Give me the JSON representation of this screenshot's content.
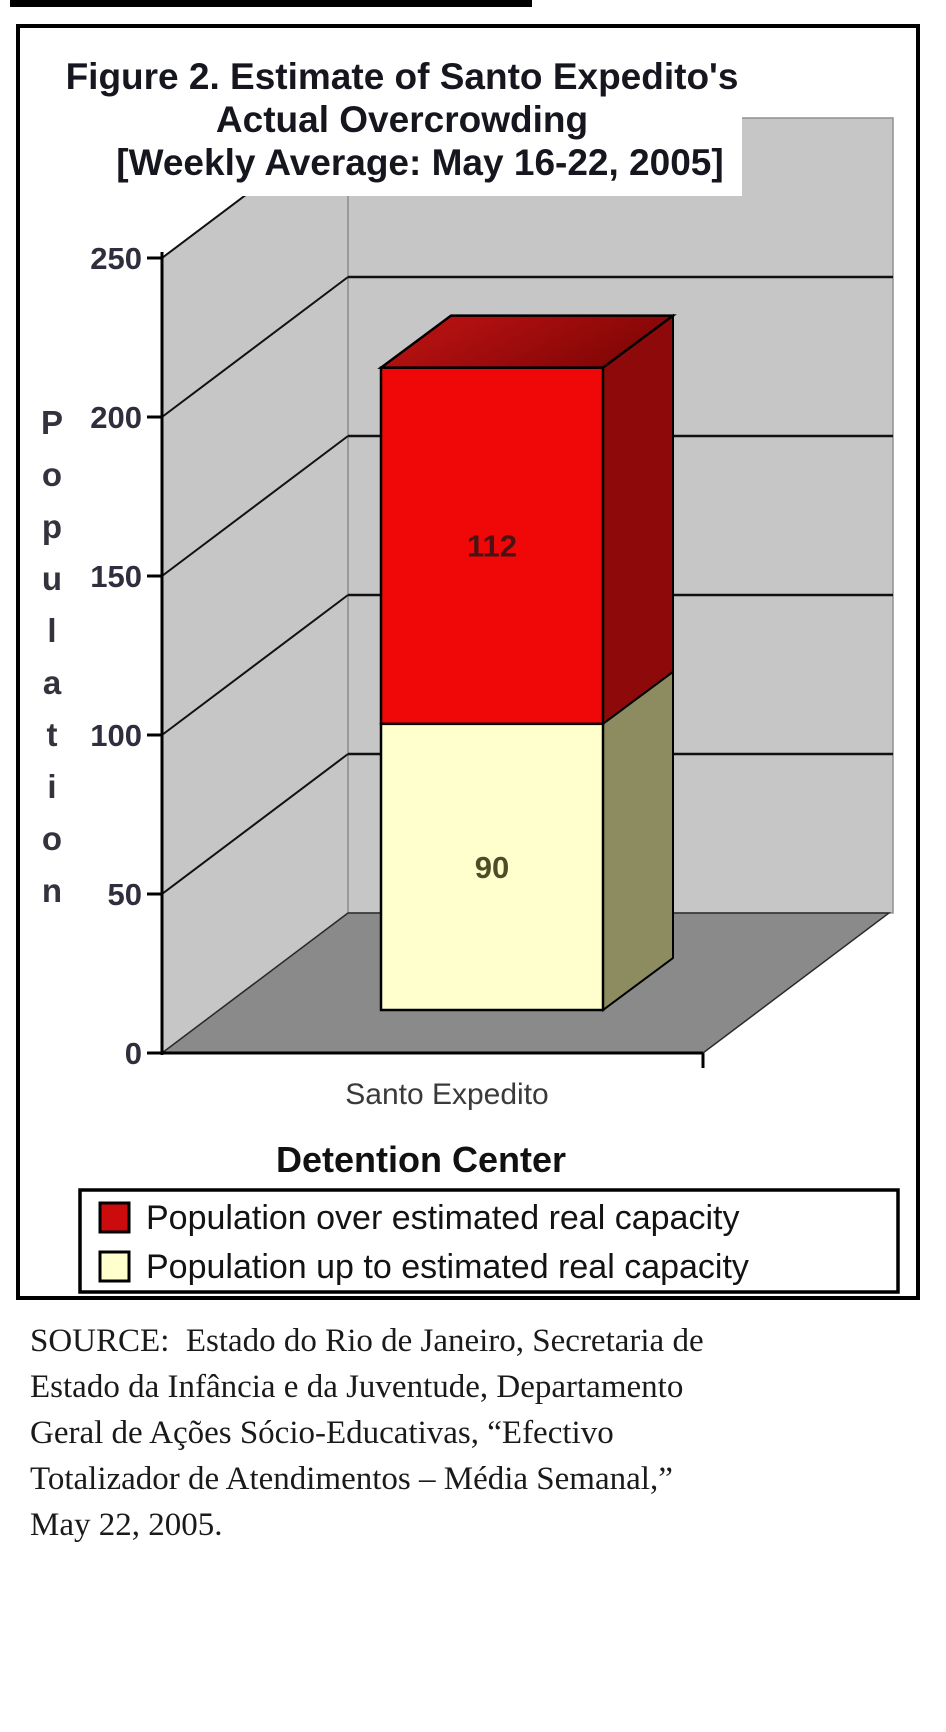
{
  "figure": {
    "title_lines": [
      "Figure 2.  Estimate of Santo Expedito's",
      "Actual Overcrowding",
      "[Weekly Average: May 16-22, 2005]"
    ]
  },
  "chart_data": {
    "type": "bar",
    "subtype": "3d-stacked-column",
    "categories": [
      "Santo Expedito"
    ],
    "series": [
      {
        "name": "Population over estimated real capacity",
        "values": [
          112
        ]
      },
      {
        "name": "Population up to estimated real capacity",
        "values": [
          90
        ]
      }
    ],
    "stack_bottom_to_top": [
      1,
      0
    ],
    "data_labels_shown": [
      "112",
      "90"
    ],
    "y_ticks": [
      0,
      50,
      100,
      150,
      200,
      250
    ],
    "ylim": [
      0,
      250
    ],
    "ylabel": "Population",
    "xlabel": "Detention Center",
    "grid": true,
    "legend_position": "bottom"
  },
  "legend": {
    "entries": [
      {
        "label": "Population over estimated real capacity",
        "swatch_color": "#CC0C0C"
      },
      {
        "label": "Population up to estimated real capacity",
        "swatch_color": "#FFFFCE"
      }
    ]
  },
  "colors": {
    "wall": "#C6C6C6",
    "floor": "#8A8A8A",
    "red_front": "#F00707",
    "red_side": "#8E0909",
    "red_top_light": "#C31414",
    "red_top_dark": "#840606",
    "cream_front": "#FFFFCE",
    "cream_side": "#8C8C60",
    "gridline": "#111111"
  },
  "source": {
    "lines": [
      "SOURCE:  Estado do Rio de Janeiro, Secretaria de",
      "Estado da Infância e da Juventude, Departamento",
      "Geral de Ações Sócio-Educativas, “Efectivo",
      "Totalizador de Atendimentos – Média Semanal,”",
      "May 22, 2005."
    ]
  }
}
